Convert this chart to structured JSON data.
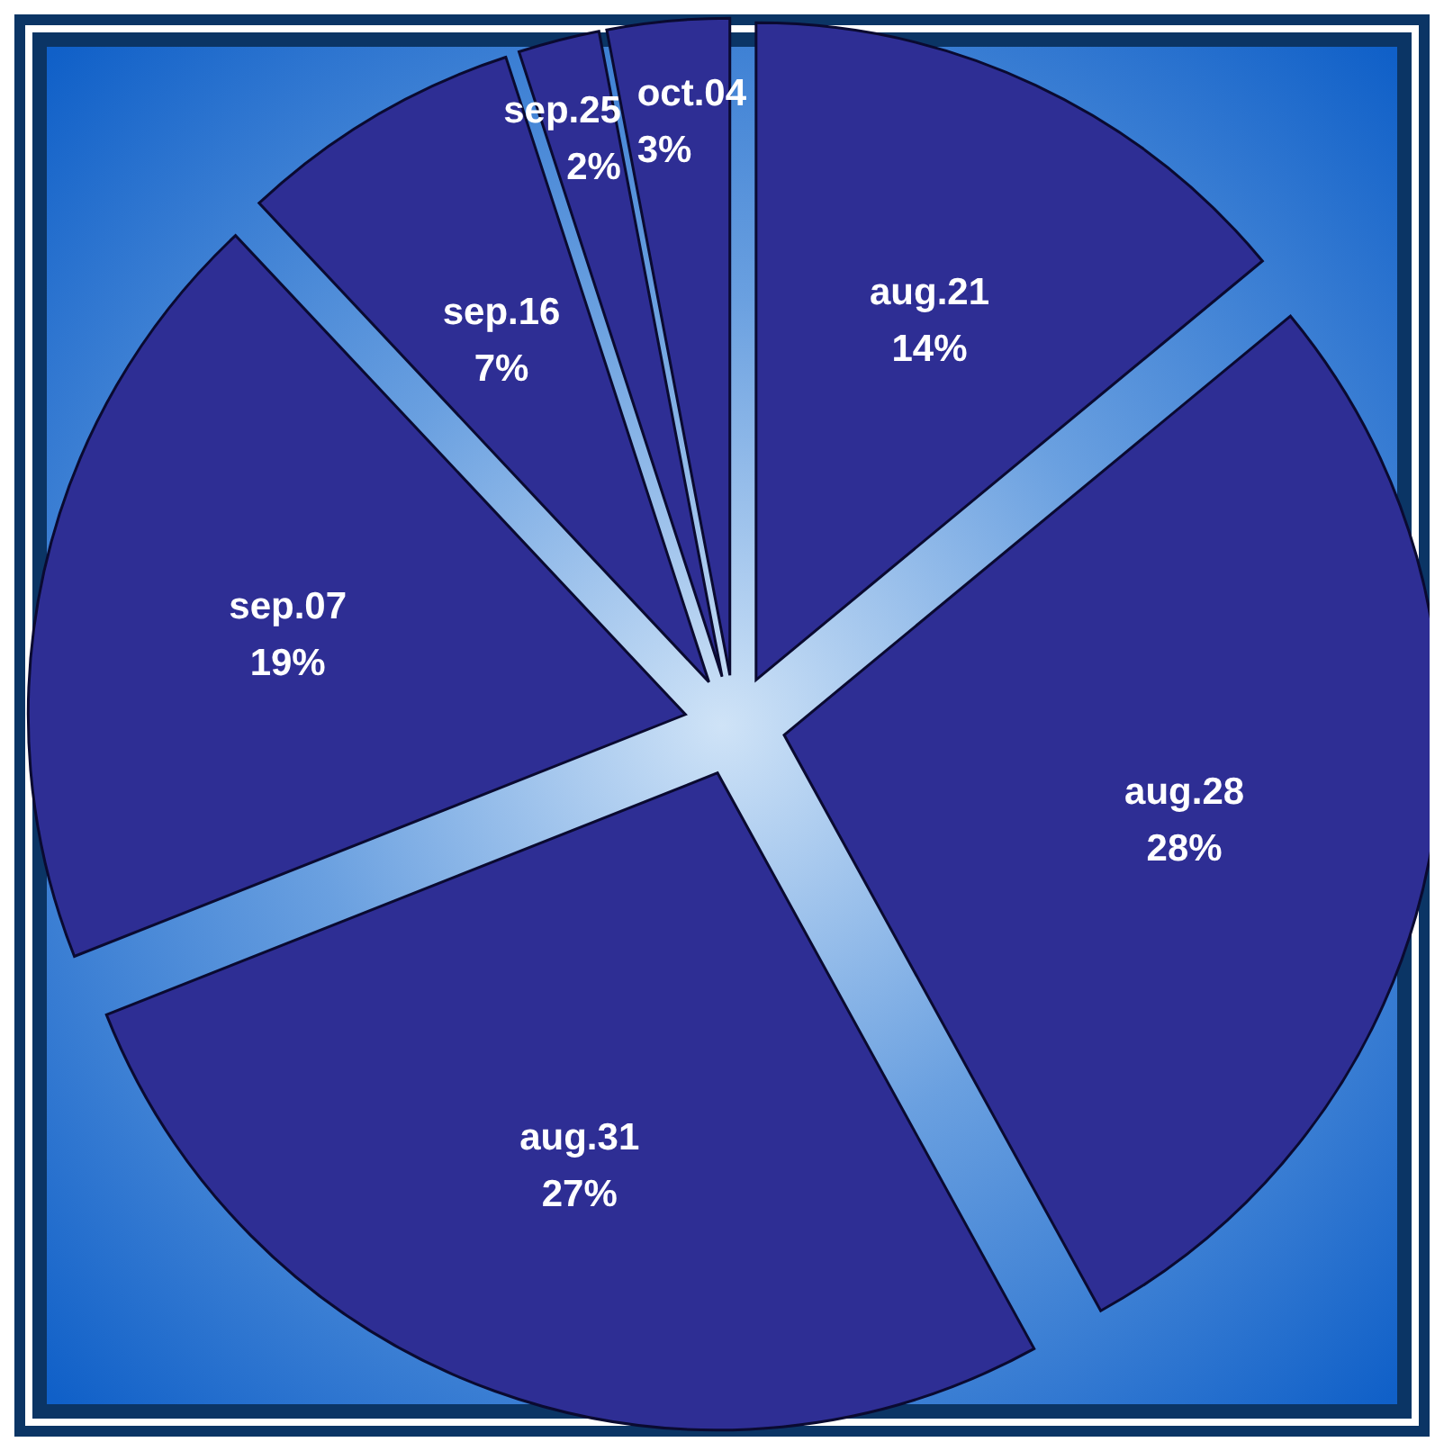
{
  "chart_data": {
    "type": "pie",
    "categories": [
      "aug.21",
      "aug.28",
      "aug.31",
      "sep.07",
      "sep.16",
      "sep.25",
      "oct.04"
    ],
    "values": [
      14,
      28,
      27,
      19,
      7,
      2,
      3
    ],
    "value_labels": [
      "14%",
      "28%",
      "27%",
      "19%",
      "7%",
      "2%",
      "3%"
    ],
    "colors": [
      "#2e2e94",
      "#2e2e94",
      "#2e2e94",
      "#2e2e94",
      "#2e2e94",
      "#2e2e94",
      "#2e2e94"
    ]
  }
}
